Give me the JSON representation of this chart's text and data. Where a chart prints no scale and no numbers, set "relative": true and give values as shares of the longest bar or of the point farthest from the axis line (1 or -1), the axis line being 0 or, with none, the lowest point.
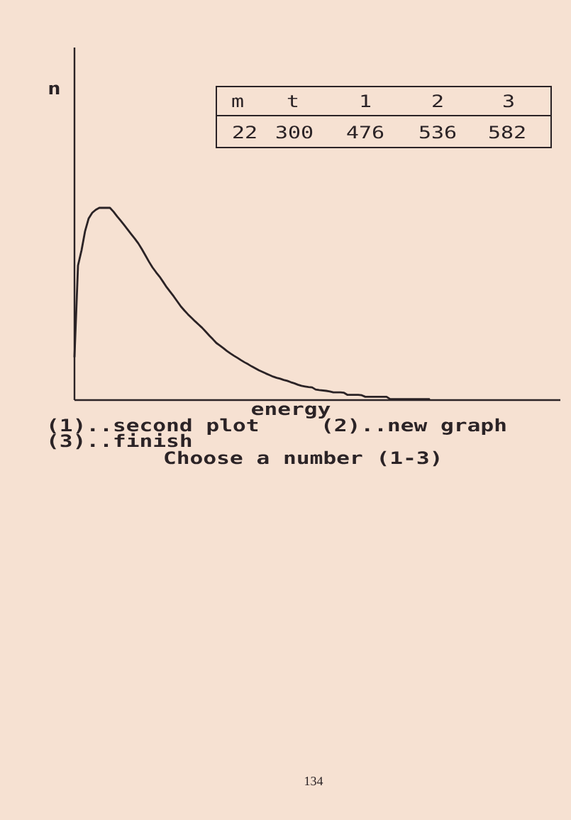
{
  "chart_data": {
    "type": "line",
    "relative": true,
    "xlabel": "energy",
    "categories": [
      null,
      null,
      null,
      null,
      null,
      null,
      null,
      null,
      null,
      null,
      null,
      null,
      null,
      null,
      null,
      null,
      null,
      null,
      null,
      null,
      null,
      null,
      null,
      null,
      null,
      null,
      null,
      null,
      null,
      null,
      null,
      null,
      null,
      null,
      null,
      null,
      null,
      null,
      null,
      null,
      null,
      null,
      null,
      null,
      null,
      null,
      null,
      null,
      null,
      null,
      null,
      null,
      null,
      null,
      null,
      null,
      null,
      null,
      null,
      null,
      null,
      null,
      null,
      null,
      null,
      null,
      null,
      null,
      null,
      null,
      null,
      null,
      null,
      null,
      null,
      null,
      null,
      null,
      null,
      null,
      null,
      null,
      null,
      null,
      null,
      null,
      null,
      null,
      null,
      null,
      null,
      null,
      null,
      null,
      null,
      null,
      null,
      null,
      null,
      null,
      null,
      null,
      null,
      null,
      null,
      null,
      null,
      null,
      null,
      null,
      null,
      null,
      null,
      null,
      null,
      null,
      null,
      null,
      null,
      null,
      null,
      null,
      null,
      null,
      null,
      null,
      null,
      null,
      null,
      null,
      null,
      null,
      null,
      null,
      null,
      null,
      null
    ],
    "series": [
      {
        "color": "#2b2326",
        "values": [
          0.225,
          0.7,
          0.78,
          0.88,
          0.945,
          0.974,
          0.99,
          1.0,
          1.0,
          1.0,
          1.0,
          0.98,
          0.956,
          0.934,
          0.911,
          0.887,
          0.863,
          0.84,
          0.815,
          0.785,
          0.753,
          0.72,
          0.69,
          0.665,
          0.642,
          0.615,
          0.587,
          0.563,
          0.539,
          0.513,
          0.487,
          0.466,
          0.446,
          0.428,
          0.41,
          0.393,
          0.376,
          0.356,
          0.336,
          0.317,
          0.297,
          0.284,
          0.27,
          0.255,
          0.242,
          0.23,
          0.219,
          0.207,
          0.196,
          0.186,
          0.175,
          0.165,
          0.155,
          0.147,
          0.138,
          0.13,
          0.122,
          0.116,
          0.111,
          0.105,
          0.1,
          0.093,
          0.087,
          0.08,
          0.074,
          0.071,
          0.068,
          0.066,
          0.055,
          0.052,
          0.05,
          0.048,
          0.045,
          0.04,
          0.04,
          0.04,
          0.038,
          0.027,
          0.027,
          0.027,
          0.027,
          0.025,
          0.017,
          0.017,
          0.017,
          0.017,
          0.017,
          0.017,
          0.017,
          0.005,
          0.005,
          0.005,
          0.005,
          0.005,
          0.005,
          0.005,
          0.005,
          0.005,
          0.005,
          0.005,
          0.005,
          null,
          null,
          null,
          null,
          null,
          null,
          null,
          null,
          null,
          null,
          null,
          null,
          null,
          null,
          null,
          null,
          null,
          null,
          null,
          null,
          null,
          null,
          null,
          null,
          null,
          null,
          null,
          null,
          null,
          null,
          null,
          null,
          null,
          null,
          null,
          null
        ]
      }
    ],
    "annotations": [
      "n",
      "m",
      "t",
      "1",
      "2",
      "3",
      "22",
      "300",
      "476",
      "536",
      "582",
      "(1)..second plot",
      "(2)..new graph",
      "(3)..finish",
      "Choose a number (1-3)",
      "134"
    ]
  }
}
